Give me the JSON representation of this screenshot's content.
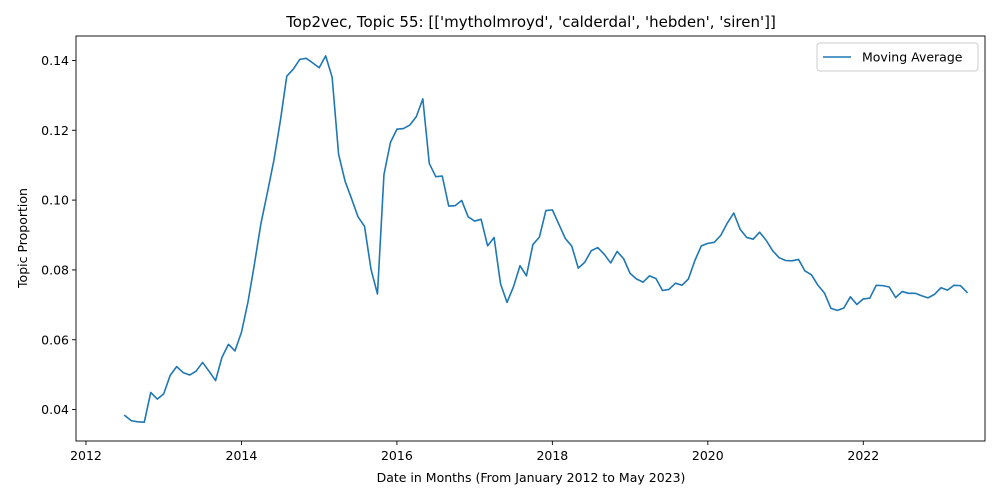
{
  "chart_data": {
    "type": "line",
    "title": "Top2vec, Topic 55: [['mytholmroyd', 'calderdal', 'hebden', 'siren']]",
    "xlabel": "Date in Months (From January 2012 to May 2023)",
    "ylabel": "Topic Proportion",
    "xlim": [
      "2011-11-15",
      "2023-07-25"
    ],
    "ylim": [
      0.031,
      0.147
    ],
    "x_ticks": [
      "2012",
      "2014",
      "2016",
      "2018",
      "2020",
      "2022"
    ],
    "y_ticks": [
      "0.04",
      "0.06",
      "0.08",
      "0.10",
      "0.12",
      "0.14"
    ],
    "grid": false,
    "legend_position": "top-right",
    "series": [
      {
        "name": "Moving Average",
        "color": "#1f77b4",
        "x": [
          "2012-07",
          "2012-08",
          "2012-09",
          "2012-10",
          "2012-11",
          "2012-12",
          "2013-01",
          "2013-02",
          "2013-03",
          "2013-04",
          "2013-05",
          "2013-06",
          "2013-07",
          "2013-08",
          "2013-09",
          "2013-10",
          "2013-11",
          "2013-12",
          "2014-01",
          "2014-02",
          "2014-03",
          "2014-04",
          "2014-05",
          "2014-06",
          "2014-07",
          "2014-08",
          "2014-09",
          "2014-10",
          "2014-11",
          "2014-12",
          "2015-01",
          "2015-02",
          "2015-03",
          "2015-04",
          "2015-05",
          "2015-06",
          "2015-07",
          "2015-08",
          "2015-09",
          "2015-10",
          "2015-11",
          "2015-12",
          "2016-01",
          "2016-02",
          "2016-03",
          "2016-04",
          "2016-05",
          "2016-06",
          "2016-07",
          "2016-08",
          "2016-09",
          "2016-10",
          "2016-11",
          "2016-12",
          "2017-01",
          "2017-02",
          "2017-03",
          "2017-04",
          "2017-05",
          "2017-06",
          "2017-07",
          "2017-08",
          "2017-09",
          "2017-10",
          "2017-11",
          "2017-12",
          "2018-01",
          "2018-02",
          "2018-03",
          "2018-04",
          "2018-05",
          "2018-06",
          "2018-07",
          "2018-08",
          "2018-09",
          "2018-10",
          "2018-11",
          "2018-12",
          "2019-01",
          "2019-02",
          "2019-03",
          "2019-04",
          "2019-05",
          "2019-06",
          "2019-07",
          "2019-08",
          "2019-09",
          "2019-10",
          "2019-11",
          "2019-12",
          "2020-01",
          "2020-02",
          "2020-03",
          "2020-04",
          "2020-05",
          "2020-06",
          "2020-07",
          "2020-08",
          "2020-09",
          "2020-10",
          "2020-11",
          "2020-12",
          "2021-01",
          "2021-02",
          "2021-03",
          "2021-04",
          "2021-05",
          "2021-06",
          "2021-07",
          "2021-08",
          "2021-09",
          "2021-10",
          "2021-11",
          "2021-12",
          "2022-01",
          "2022-02",
          "2022-03",
          "2022-04",
          "2022-05",
          "2022-06",
          "2022-07",
          "2022-08",
          "2022-09",
          "2022-10",
          "2022-11",
          "2022-12",
          "2023-01",
          "2023-02",
          "2023-03",
          "2023-04",
          "2023-05"
        ],
        "values": [
          0.0383,
          0.0368,
          0.0365,
          0.0364,
          0.0449,
          0.043,
          0.0445,
          0.0498,
          0.0523,
          0.0506,
          0.0499,
          0.051,
          0.0535,
          0.051,
          0.0483,
          0.055,
          0.0587,
          0.0568,
          0.0621,
          0.0707,
          0.0816,
          0.0932,
          0.1021,
          0.1113,
          0.1226,
          0.1355,
          0.1375,
          0.1403,
          0.1406,
          0.1393,
          0.1379,
          0.1413,
          0.1352,
          0.1131,
          0.1054,
          0.1004,
          0.0952,
          0.0925,
          0.0802,
          0.0731,
          0.1073,
          0.1165,
          0.1203,
          0.1205,
          0.1215,
          0.1239,
          0.129,
          0.1105,
          0.1067,
          0.1069,
          0.0983,
          0.0984,
          0.0999,
          0.0952,
          0.094,
          0.0945,
          0.0869,
          0.0893,
          0.076,
          0.0707,
          0.0752,
          0.0812,
          0.0783,
          0.0873,
          0.0894,
          0.097,
          0.0972,
          0.0931,
          0.089,
          0.0868,
          0.0805,
          0.0822,
          0.0855,
          0.0864,
          0.0845,
          0.082,
          0.0853,
          0.0832,
          0.079,
          0.0774,
          0.0765,
          0.0783,
          0.0775,
          0.0741,
          0.0744,
          0.0762,
          0.0756,
          0.0774,
          0.0827,
          0.0869,
          0.0876,
          0.0879,
          0.0899,
          0.0934,
          0.0963,
          0.0916,
          0.0893,
          0.0888,
          0.0908,
          0.0885,
          0.0855,
          0.0835,
          0.0827,
          0.0826,
          0.083,
          0.0797,
          0.0786,
          0.0756,
          0.0734,
          0.069,
          0.0684,
          0.0691,
          0.0723,
          0.0701,
          0.0717,
          0.0719,
          0.0756,
          0.0755,
          0.0751,
          0.0721,
          0.0738,
          0.0733,
          0.0733,
          0.0726,
          0.072,
          0.073,
          0.0749,
          0.0742,
          0.0756,
          0.0755,
          0.0736
        ]
      }
    ]
  }
}
